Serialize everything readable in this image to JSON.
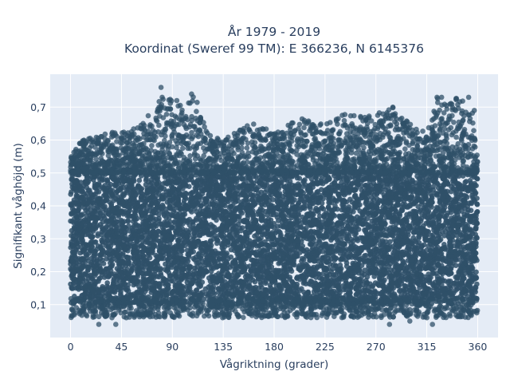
{
  "chart_data": {
    "type": "scatter",
    "title_line1": "År 1979 - 2019",
    "title_line2": "Koordinat (Sweref 99 TM): E 366236, N 6145376",
    "xlabel": "Vågriktning (grader)",
    "ylabel": "Signifikant våghöjd (m)",
    "xlim": [
      -18,
      378
    ],
    "ylim": [
      0.0,
      0.8
    ],
    "x_ticks": [
      0,
      45,
      90,
      135,
      180,
      225,
      270,
      315,
      360
    ],
    "x_tick_labels": [
      "0",
      "45",
      "90",
      "135",
      "180",
      "225",
      "270",
      "315",
      "360"
    ],
    "y_ticks": [
      0.1,
      0.2,
      0.3,
      0.4,
      0.5,
      0.6,
      0.7
    ],
    "y_tick_labels": [
      "0,1",
      "0,2",
      "0,3",
      "0,4",
      "0,5",
      "0,6",
      "0,7"
    ],
    "grid": true,
    "legend": "none",
    "colors": {
      "background": "#e5ecf6",
      "grid": "#ffffff",
      "marker": "#2f5068"
    },
    "series": [
      {
        "x_range": [
          0,
          360
        ],
        "dense_band": [
          0.1,
          0.5
        ],
        "envelope": [
          [
            0,
            0.55
          ],
          [
            10,
            0.6
          ],
          [
            30,
            0.62
          ],
          [
            45,
            0.63
          ],
          [
            60,
            0.64
          ],
          [
            75,
            0.7
          ],
          [
            85,
            0.76
          ],
          [
            90,
            0.72
          ],
          [
            100,
            0.7
          ],
          [
            110,
            0.74
          ],
          [
            120,
            0.63
          ],
          [
            135,
            0.6
          ],
          [
            160,
            0.66
          ],
          [
            180,
            0.62
          ],
          [
            200,
            0.67
          ],
          [
            225,
            0.65
          ],
          [
            240,
            0.68
          ],
          [
            270,
            0.68
          ],
          [
            285,
            0.7
          ],
          [
            300,
            0.65
          ],
          [
            315,
            0.62
          ],
          [
            325,
            0.73
          ],
          [
            345,
            0.73
          ],
          [
            355,
            0.69
          ],
          [
            360,
            0.56
          ]
        ],
        "outliers": [
          [
            80,
            0.76
          ],
          [
            81,
            0.73
          ],
          [
            94,
            0.72
          ],
          [
            107,
            0.74
          ],
          [
            285,
            0.7
          ],
          [
            324,
            0.73
          ],
          [
            352,
            0.73
          ],
          [
            357,
            0.69
          ],
          [
            25,
            0.04
          ],
          [
            40,
            0.04
          ],
          [
            282,
            0.04
          ],
          [
            320,
            0.04
          ],
          [
            300,
            0.05
          ]
        ]
      }
    ]
  }
}
